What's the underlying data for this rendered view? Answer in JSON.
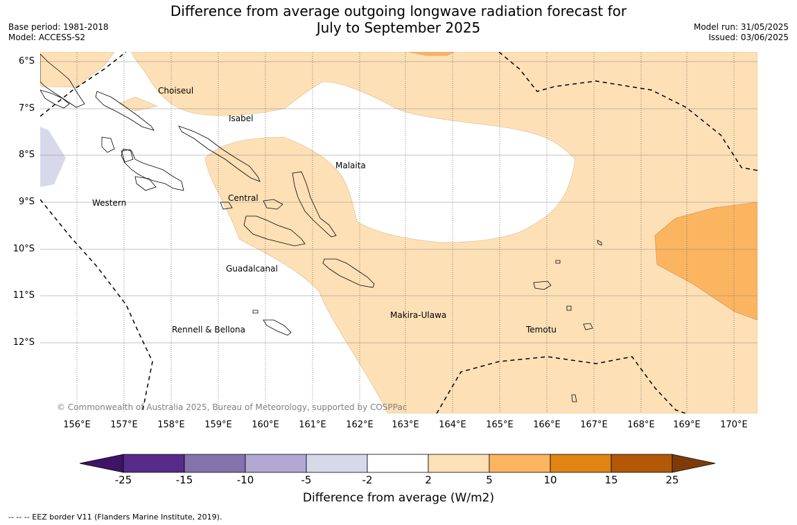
{
  "title_line1": "Difference from average outgoing longwave radiation forecast for",
  "title_line2": "July to September 2025",
  "base_period": "Base period: 1981-2018",
  "model": "Model: ACCESS-S2",
  "model_run": "Model run: 31/05/2025",
  "issued": "Issued: 03/06/2025",
  "copyright": "© Commonwealth of Australia 2025, Bureau of Meteorology, supported by COSPPac",
  "lat_labels": [
    "6°S",
    "7°S",
    "8°S",
    "9°S",
    "10°S",
    "11°S",
    "12°S"
  ],
  "lon_labels": [
    "156°E",
    "157°E",
    "158°E",
    "159°E",
    "160°E",
    "161°E",
    "162°E",
    "163°E",
    "164°E",
    "165°E",
    "166°E",
    "167°E",
    "168°E",
    "169°E",
    "170°E"
  ],
  "provinces": [
    "Choiseul",
    "Isabel",
    "Malaita",
    "Western",
    "Central",
    "Guadalcanal",
    "Makira-Ulawa",
    "Rennell & Bellona",
    "Temotu"
  ],
  "colorbar": {
    "title": "Difference from average (W/m2)",
    "ticks": [
      "-25",
      "-15",
      "-10",
      "-5",
      "-2",
      "2",
      "5",
      "10",
      "15",
      "25"
    ],
    "colors": [
      "#3f1367",
      "#572b8a",
      "#8473ad",
      "#b1a9d3",
      "#d8d8eb",
      "#ffffff",
      "#fde0b6",
      "#fbb561",
      "#e08414",
      "#b25806",
      "#7f3b07"
    ]
  },
  "footer": "-- -- -- EEZ border V11 (Flanders Marine Institute, 2019)."
}
